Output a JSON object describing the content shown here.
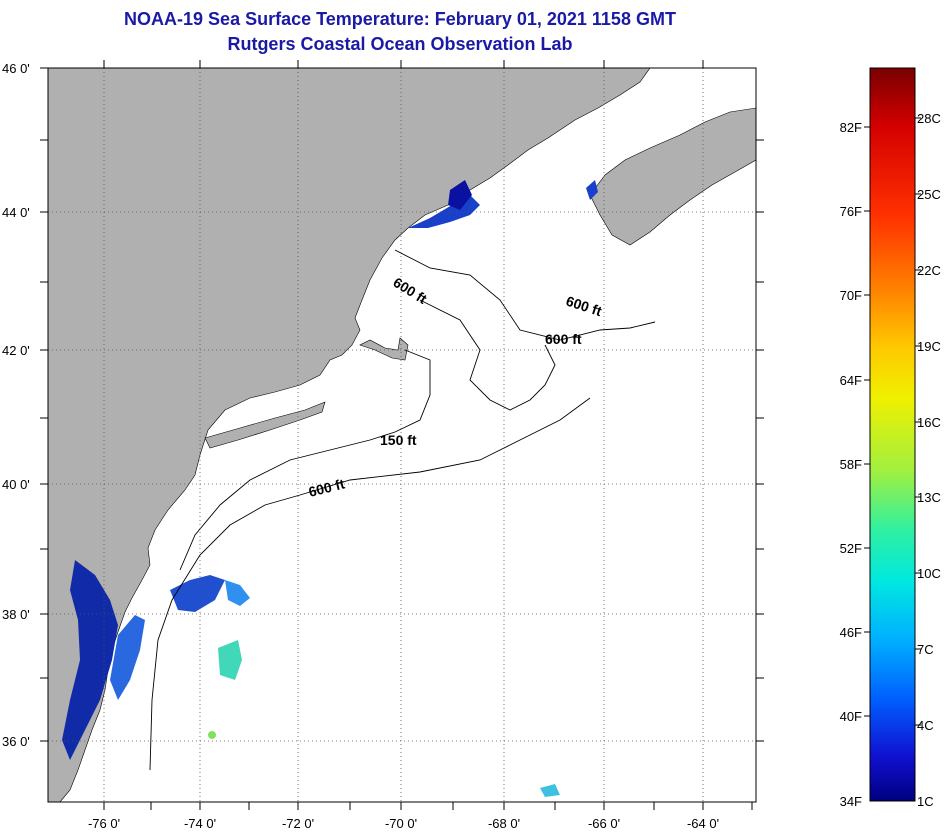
{
  "header": {
    "title": "NOAA-19 Sea Surface Temperature:  February 01, 2021 1158 GMT",
    "subtitle": "Rutgers Coastal Ocean Observation Lab"
  },
  "map": {
    "lat_labels": [
      "46 0'",
      "44 0'",
      "42 0'",
      "40 0'",
      "38 0'",
      "36 0'"
    ],
    "lon_labels": [
      "-76 0'",
      "-74 0'",
      "-72 0'",
      "-70 0'",
      "-68 0'",
      "-66 0'",
      "-64 0'"
    ],
    "contour_labels": [
      "600 ft",
      "600 ft",
      "600 ft",
      "150 ft",
      "600 ft"
    ],
    "colors": {
      "land": "#b0b0b0",
      "ocean": "#ffffff",
      "grid": "#555555"
    }
  },
  "colorbar": {
    "fahrenheit_labels": [
      "82F",
      "76F",
      "70F",
      "64F",
      "58F",
      "52F",
      "46F",
      "40F",
      "34F"
    ],
    "celsius_labels": [
      "28C",
      "25C",
      "22C",
      "19C",
      "16C",
      "13C",
      "10C",
      "7C",
      "4C",
      "1C"
    ],
    "gradient_colors": [
      "#7a0000",
      "#d40000",
      "#ff3000",
      "#ff8000",
      "#ffc800",
      "#f0f000",
      "#a0f040",
      "#30f0a0",
      "#00e8e0",
      "#00b0ff",
      "#0060ff",
      "#1010d0",
      "#000080"
    ]
  }
}
